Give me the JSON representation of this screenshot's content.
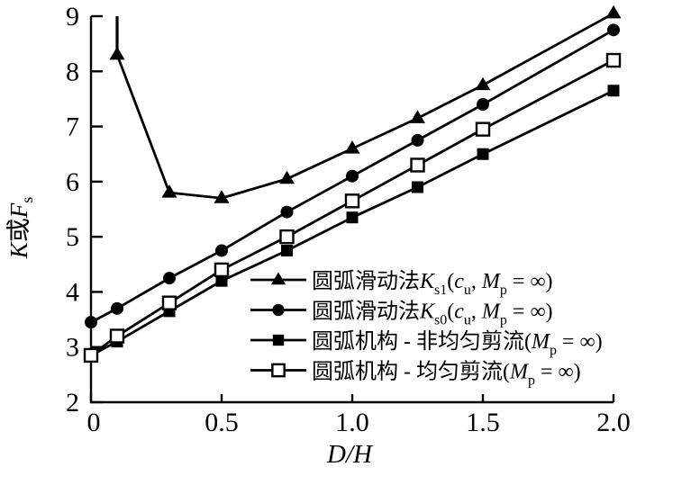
{
  "figure": {
    "bg_color": "#ffffff",
    "fg_color": "#000000"
  },
  "chart_data": {
    "type": "line",
    "title": "",
    "xlabel_plain": "D/H",
    "ylabel_plain": "K或Fs",
    "xlabel_parts": [
      {
        "t": "D/H",
        "i": true
      }
    ],
    "ylabel_parts": [
      {
        "t": "K",
        "i": true
      },
      {
        "t": "或"
      },
      {
        "t": "F",
        "i": true
      },
      {
        "t": "s",
        "sub": true
      }
    ],
    "xlim": [
      0,
      2
    ],
    "ylim": [
      2,
      9
    ],
    "x_ticks": {
      "values": [
        0,
        0.5,
        1.0,
        1.5,
        2.0
      ],
      "labels": [
        "0",
        "0.5",
        "1.0",
        "1.5",
        "2.0"
      ]
    },
    "y_ticks": {
      "values": [
        2,
        3,
        4,
        5,
        6,
        7,
        8,
        9
      ],
      "labels": [
        "2",
        "3",
        "4",
        "5",
        "6",
        "7",
        "8",
        "9"
      ]
    },
    "grid": false,
    "frame": "left-bottom-axes-only",
    "legend_position": "inside-lower-right",
    "x": [
      0,
      0.1,
      0.3,
      0.5,
      0.75,
      1.0,
      1.25,
      1.5,
      2.0
    ],
    "series": [
      {
        "name_plain": "圆弧滑动法Ks1(cu, Mp = ∞)",
        "name_parts": [
          {
            "t": "圆弧滑动法"
          },
          {
            "t": "K",
            "i": true
          },
          {
            "t": "s1",
            "sub": true
          },
          {
            "t": "("
          },
          {
            "t": "c",
            "i": true
          },
          {
            "t": "u",
            "sub": true
          },
          {
            "t": ", "
          },
          {
            "t": "M",
            "i": true
          },
          {
            "t": "p",
            "sub": true
          },
          {
            "t": " = ∞)"
          }
        ],
        "marker": "triangle-filled",
        "values": [
          null,
          8.3,
          5.8,
          5.7,
          6.05,
          6.6,
          7.15,
          7.75,
          9.05
        ],
        "offscale_riser_at_x": 0.1
      },
      {
        "name_plain": "圆弧滑动法Ks0(cu, Mp = ∞)",
        "name_parts": [
          {
            "t": "圆弧滑动法"
          },
          {
            "t": "K",
            "i": true
          },
          {
            "t": "s0",
            "sub": true
          },
          {
            "t": "("
          },
          {
            "t": "c",
            "i": true
          },
          {
            "t": "u",
            "sub": true
          },
          {
            "t": ", "
          },
          {
            "t": "M",
            "i": true
          },
          {
            "t": "p",
            "sub": true
          },
          {
            "t": " = ∞)"
          }
        ],
        "marker": "circle-filled",
        "values": [
          3.45,
          3.7,
          4.25,
          4.75,
          5.45,
          6.1,
          6.75,
          7.4,
          8.75
        ]
      },
      {
        "name_plain": "圆弧机构 - 非均匀剪流(Mp = ∞)",
        "name_parts": [
          {
            "t": "圆弧机构 - 非均匀剪流("
          },
          {
            "t": "M",
            "i": true
          },
          {
            "t": "p",
            "sub": true
          },
          {
            "t": " = ∞)"
          }
        ],
        "marker": "square-filled",
        "values": [
          2.85,
          3.1,
          3.65,
          4.2,
          4.75,
          5.35,
          5.9,
          6.5,
          7.65
        ]
      },
      {
        "name_plain": "圆弧机构 - 均匀剪流(Mp = ∞)",
        "name_parts": [
          {
            "t": "圆弧机构 - 均匀剪流("
          },
          {
            "t": "M",
            "i": true
          },
          {
            "t": "p",
            "sub": true
          },
          {
            "t": " = ∞)"
          }
        ],
        "marker": "square-open",
        "values": [
          2.85,
          3.2,
          3.8,
          4.4,
          5.0,
          5.65,
          6.3,
          6.95,
          8.2
        ]
      }
    ]
  }
}
